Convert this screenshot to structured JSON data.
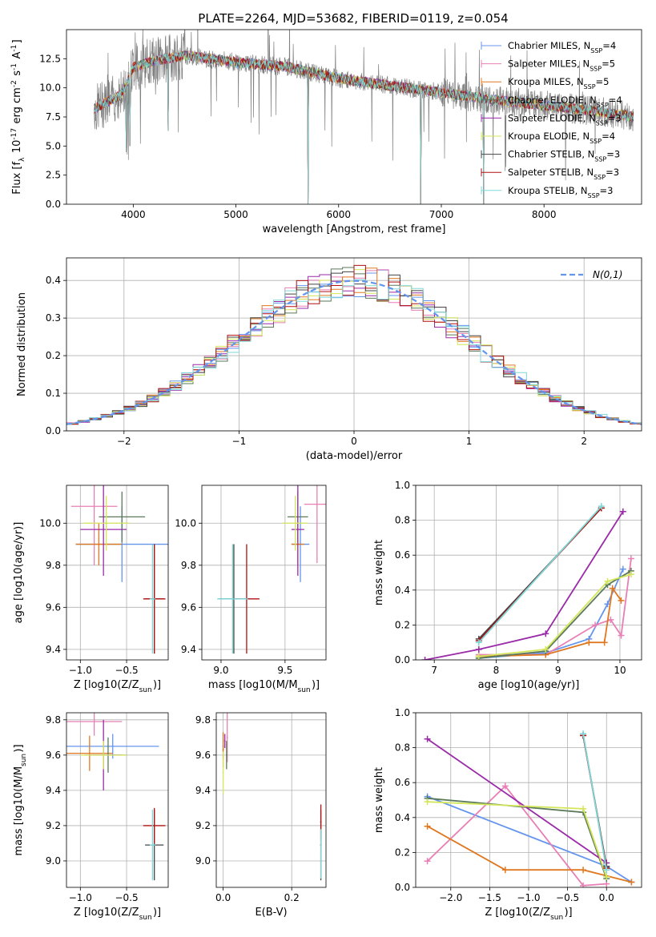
{
  "figure": {
    "title": "PLATE=2264, MJD=53682, FIBERID=0119, z=0.054"
  },
  "models": [
    {
      "label": "Chabrier MILES, N_SSP=4",
      "short": "Chabrier MILES",
      "n": "4",
      "color": "#6495ed"
    },
    {
      "label": "Salpeter MILES, N_SSP=5",
      "short": "Salpeter MILES",
      "n": "5",
      "color": "#e87fb5"
    },
    {
      "label": "Kroupa MILES, N_SSP=5",
      "short": "Kroupa MILES",
      "n": "5",
      "color": "#e07820"
    },
    {
      "label": "Chabrier ELODIE, N_SSP=4",
      "short": "Chabrier ELODIE",
      "n": "4",
      "color": "#5a7a5a"
    },
    {
      "label": "Salpeter ELODIE, N_SSP=3",
      "short": "Salpeter ELODIE",
      "n": "3",
      "color": "#9a2aa8"
    },
    {
      "label": "Kroupa ELODIE, N_SSP=4",
      "short": "Kroupa ELODIE",
      "n": "4",
      "color": "#d4e65a"
    },
    {
      "label": "Chabrier STELIB, N_SSP=3",
      "short": "Chabrier STELIB",
      "n": "3",
      "color": "#444444"
    },
    {
      "label": "Salpeter STELIB, N_SSP=3",
      "short": "Salpeter STELIB",
      "n": "3",
      "color": "#b01010"
    },
    {
      "label": "Kroupa STELIB, N_SSP=3",
      "short": "Kroupa STELIB",
      "n": "3",
      "color": "#7ed8d8"
    }
  ],
  "chart_data": [
    {
      "id": "spectrum",
      "type": "line",
      "xlabel": "wavelength [Angstrom, rest frame]",
      "ylabel": "Flux [f_λ 10^-17 erg cm^-2 s^-1 A^-1]",
      "xlim": [
        3350,
        8950
      ],
      "ylim": [
        0,
        15
      ],
      "xticks": [
        4000,
        5000,
        6000,
        7000,
        8000
      ],
      "yticks": [
        "0.0",
        "2.5",
        "5.0",
        "7.5",
        "10.0",
        "12.5"
      ],
      "data_color": "#808080",
      "model_color": "#7ed8d8",
      "continuum": [
        [
          3620,
          8.2
        ],
        [
          3900,
          9.5
        ],
        [
          4000,
          11.8
        ],
        [
          4200,
          12.3
        ],
        [
          4500,
          12.8
        ],
        [
          5000,
          12.2
        ],
        [
          5500,
          11.8
        ],
        [
          6000,
          10.8
        ],
        [
          6500,
          10.2
        ],
        [
          7000,
          9.6
        ],
        [
          7500,
          9.0
        ],
        [
          8000,
          8.5
        ],
        [
          8500,
          8.0
        ],
        [
          8870,
          7.5
        ]
      ],
      "dips": [
        [
          3933,
          4.5
        ],
        [
          3968,
          5.0
        ],
        [
          4340,
          6.3
        ],
        [
          5700,
          0.0
        ],
        [
          6800,
          0.0
        ],
        [
          7410,
          0.0
        ]
      ],
      "wavelength_range": [
        3620,
        8870
      ]
    },
    {
      "id": "residuals",
      "type": "histogram",
      "xlabel": "(data-model)/error",
      "ylabel": "Normed distribution",
      "xlim": [
        -2.5,
        2.5
      ],
      "ylim": [
        0,
        0.46
      ],
      "xticks": [
        -2,
        -1,
        0,
        1,
        2
      ],
      "yticks": [
        "0.0",
        "0.1",
        "0.2",
        "0.3",
        "0.4"
      ],
      "legend": "N(0,1)",
      "bin_width": 0.1,
      "grid": true
    },
    {
      "id": "age-vs-Z",
      "type": "errorbar",
      "xlabel": "Z [log10(Z/Z_sun)]",
      "ylabel": "age [log10(age/yr)]",
      "xlim": [
        -1.15,
        -0.05
      ],
      "ylim": [
        9.35,
        10.18
      ],
      "xticks": [
        -1.0,
        -0.5
      ],
      "yticks": [
        9.4,
        9.6,
        9.8,
        10.0
      ],
      "points": [
        {
          "model": 0,
          "x": -0.55,
          "y": 9.9,
          "xerr": 0.5,
          "yerr": 0.18
        },
        {
          "model": 1,
          "x": -0.85,
          "y": 10.08,
          "xerr": 0.25,
          "yerr": 0.28
        },
        {
          "model": 2,
          "x": -0.8,
          "y": 9.9,
          "xerr": 0.25,
          "yerr": 0.1
        },
        {
          "model": 3,
          "x": -0.55,
          "y": 10.03,
          "xerr": 0.25,
          "yerr": 0.12
        },
        {
          "model": 4,
          "x": -0.75,
          "y": 9.97,
          "xerr": 0.25,
          "yerr": 0.22
        },
        {
          "model": 5,
          "x": -0.72,
          "y": 10.0,
          "xerr": 0.25,
          "yerr": 0.13
        },
        {
          "model": 6,
          "x": -0.2,
          "y": 9.64,
          "xerr": 0.1,
          "yerr": 0.26
        },
        {
          "model": 7,
          "x": -0.2,
          "y": 9.64,
          "xerr": 0.12,
          "yerr": 0.26
        },
        {
          "model": 8,
          "x": -0.22,
          "y": 9.64,
          "xerr": 0.03,
          "yerr": 0.26
        }
      ]
    },
    {
      "id": "age-vs-mass",
      "type": "errorbar",
      "xlabel": "mass [log10(M/M_sun)]",
      "ylabel": "",
      "xlim": [
        8.85,
        9.82
      ],
      "ylim": [
        9.35,
        10.18
      ],
      "xticks": [
        9.0,
        9.5
      ],
      "yticks": [
        9.4,
        9.6,
        9.8,
        10.0
      ],
      "points": [
        {
          "model": 0,
          "x": 9.62,
          "y": 9.9,
          "xerr": 0.07,
          "yerr": 0.18
        },
        {
          "model": 1,
          "x": 9.75,
          "y": 10.09,
          "xerr": 0.1,
          "yerr": 0.28
        },
        {
          "model": 2,
          "x": 9.6,
          "y": 9.9,
          "xerr": 0.05,
          "yerr": 0.1
        },
        {
          "model": 3,
          "x": 9.6,
          "y": 10.03,
          "xerr": 0.08,
          "yerr": 0.12
        },
        {
          "model": 4,
          "x": 9.6,
          "y": 9.97,
          "xerr": 0.05,
          "yerr": 0.22
        },
        {
          "model": 5,
          "x": 9.58,
          "y": 10.0,
          "xerr": 0.1,
          "yerr": 0.13
        },
        {
          "model": 6,
          "x": 9.1,
          "y": 9.64,
          "xerr": 0.12,
          "yerr": 0.26
        },
        {
          "model": 7,
          "x": 9.2,
          "y": 9.64,
          "xerr": 0.1,
          "yerr": 0.26
        },
        {
          "model": 8,
          "x": 9.09,
          "y": 9.64,
          "xerr": 0.12,
          "yerr": 0.26
        }
      ]
    },
    {
      "id": "massweight-vs-age",
      "type": "line",
      "xlabel": "age [log10(age/yr)]",
      "ylabel": "mass weight",
      "xlim": [
        6.7,
        10.35
      ],
      "ylim": [
        0,
        1
      ],
      "xticks": [
        7,
        8,
        9,
        10
      ],
      "yticks": [
        "0.0",
        "0.2",
        "0.4",
        "0.6",
        "0.8",
        "1.0"
      ],
      "series": [
        {
          "model": 0,
          "points": [
            [
              7.72,
              0.01
            ],
            [
              8.8,
              0.04
            ],
            [
              9.5,
              0.12
            ],
            [
              9.8,
              0.32
            ],
            [
              10.05,
              0.52
            ]
          ]
        },
        {
          "model": 1,
          "points": [
            [
              7.72,
              0.03
            ],
            [
              8.8,
              0.03
            ],
            [
              9.6,
              0.2
            ],
            [
              9.85,
              0.23
            ],
            [
              10.02,
              0.14
            ],
            [
              10.18,
              0.58
            ]
          ]
        },
        {
          "model": 2,
          "points": [
            [
              7.72,
              0.02
            ],
            [
              8.8,
              0.03
            ],
            [
              9.5,
              0.1
            ],
            [
              9.75,
              0.1
            ],
            [
              9.88,
              0.41
            ],
            [
              10.02,
              0.34
            ]
          ]
        },
        {
          "model": 3,
          "points": [
            [
              7.72,
              0.01
            ],
            [
              8.8,
              0.05
            ],
            [
              9.8,
              0.43
            ],
            [
              10.18,
              0.51
            ]
          ]
        },
        {
          "model": 4,
          "points": [
            [
              6.85,
              0.0
            ],
            [
              7.72,
              0.06
            ],
            [
              8.8,
              0.15
            ],
            [
              10.05,
              0.85
            ]
          ]
        },
        {
          "model": 5,
          "points": [
            [
              7.72,
              0.02
            ],
            [
              8.8,
              0.06
            ],
            [
              9.8,
              0.45
            ],
            [
              10.18,
              0.49
            ]
          ]
        },
        {
          "model": 6,
          "points": [
            [
              7.72,
              0.12
            ],
            [
              9.7,
              0.87
            ]
          ]
        },
        {
          "model": 7,
          "points": [
            [
              7.72,
              0.11
            ],
            [
              9.7,
              0.87
            ]
          ]
        },
        {
          "model": 8,
          "points": [
            [
              7.72,
              0.1
            ],
            [
              9.7,
              0.88
            ]
          ]
        }
      ]
    },
    {
      "id": "mass-vs-Z",
      "type": "errorbar",
      "xlabel": "Z [log10(Z/Z_sun)]",
      "ylabel": "mass [log10(M/M_sun)]",
      "xlim": [
        -1.15,
        -0.05
      ],
      "ylim": [
        8.85,
        9.84
      ],
      "xticks": [
        -1.0,
        -0.5
      ],
      "yticks": [
        9.0,
        9.2,
        9.4,
        9.6,
        9.8
      ],
      "points": [
        {
          "model": 0,
          "x": -0.65,
          "y": 9.65,
          "xerr": 0.5,
          "yerr": 0.07
        },
        {
          "model": 1,
          "x": -0.85,
          "y": 9.79,
          "xerr": 0.3,
          "yerr": 0.08
        },
        {
          "model": 2,
          "x": -0.9,
          "y": 9.61,
          "xerr": 0.25,
          "yerr": 0.1
        },
        {
          "model": 3,
          "x": -0.7,
          "y": 9.6,
          "xerr": 0.2,
          "yerr": 0.1
        },
        {
          "model": 4,
          "x": -0.75,
          "y": 9.6,
          "xerr": 0.2,
          "yerr": 0.2
        },
        {
          "model": 5,
          "x": -0.75,
          "y": 9.6,
          "xerr": 0.25,
          "yerr": 0.08
        },
        {
          "model": 6,
          "x": -0.2,
          "y": 9.09,
          "xerr": 0.1,
          "yerr": 0.2
        },
        {
          "model": 7,
          "x": -0.2,
          "y": 9.2,
          "xerr": 0.12,
          "yerr": 0.1
        },
        {
          "model": 8,
          "x": -0.22,
          "y": 9.09,
          "xerr": 0.03,
          "yerr": 0.2
        }
      ]
    },
    {
      "id": "mass-vs-ebv",
      "type": "errorbar",
      "xlabel": "E(B-V)",
      "ylabel": "",
      "xlim": [
        -0.02,
        0.3
      ],
      "ylim": [
        8.85,
        9.84
      ],
      "xticks": [
        0.0,
        0.2
      ],
      "yticks": [
        9.0,
        9.2,
        9.4,
        9.6,
        9.8
      ],
      "points": [
        {
          "model": 0,
          "x": 0.0,
          "y": 9.65,
          "xerr": 0.002,
          "yerr": 0.07
        },
        {
          "model": 1,
          "x": 0.012,
          "y": 9.7,
          "xerr": 0.002,
          "yerr": 0.14
        },
        {
          "model": 2,
          "x": 0.0,
          "y": 9.63,
          "xerr": 0.002,
          "yerr": 0.1
        },
        {
          "model": 3,
          "x": 0.01,
          "y": 9.6,
          "xerr": 0.002,
          "yerr": 0.08
        },
        {
          "model": 4,
          "x": 0.005,
          "y": 9.68,
          "xerr": 0.002,
          "yerr": 0.04
        },
        {
          "model": 5,
          "x": 0.0,
          "y": 9.5,
          "xerr": 0.002,
          "yerr": 0.12
        },
        {
          "model": 6,
          "x": 0.285,
          "y": 9.09,
          "xerr": 0.002,
          "yerr": 0.2
        },
        {
          "model": 7,
          "x": 0.285,
          "y": 9.22,
          "xerr": 0.002,
          "yerr": 0.1
        },
        {
          "model": 8,
          "x": 0.285,
          "y": 9.04,
          "xerr": 0.002,
          "yerr": 0.14
        }
      ]
    },
    {
      "id": "massweight-vs-Z",
      "type": "line",
      "xlabel": "Z [log10(Z/Z_sun)]",
      "ylabel": "mass weight",
      "xlim": [
        -2.45,
        0.45
      ],
      "ylim": [
        0,
        1
      ],
      "xticks": [
        -2.0,
        -1.5,
        -1.0,
        -0.5,
        0.0
      ],
      "yticks": [
        "0.0",
        "0.2",
        "0.4",
        "0.6",
        "0.8",
        "1.0"
      ],
      "series": [
        {
          "model": 0,
          "points": [
            [
              -2.3,
              0.52
            ],
            [
              0.0,
              0.12
            ],
            [
              0.32,
              0.03
            ]
          ]
        },
        {
          "model": 1,
          "points": [
            [
              -2.3,
              0.15
            ],
            [
              -1.3,
              0.58
            ],
            [
              -0.3,
              0.01
            ],
            [
              0.0,
              0.02
            ]
          ]
        },
        {
          "model": 2,
          "points": [
            [
              -2.3,
              0.35
            ],
            [
              -1.3,
              0.1
            ],
            [
              -0.3,
              0.1
            ],
            [
              0.32,
              0.03
            ]
          ]
        },
        {
          "model": 3,
          "points": [
            [
              -2.3,
              0.51
            ],
            [
              -0.3,
              0.43
            ],
            [
              0.0,
              0.05
            ]
          ]
        },
        {
          "model": 4,
          "points": [
            [
              -2.3,
              0.85
            ],
            [
              0.0,
              0.14
            ]
          ]
        },
        {
          "model": 5,
          "points": [
            [
              -2.3,
              0.49
            ],
            [
              -0.3,
              0.45
            ],
            [
              0.0,
              0.06
            ]
          ]
        },
        {
          "model": 6,
          "points": [
            [
              -0.3,
              0.87
            ],
            [
              0.0,
              0.12
            ]
          ]
        },
        {
          "model": 7,
          "points": [
            [
              -0.3,
              0.87
            ],
            [
              0.0,
              0.11
            ]
          ]
        },
        {
          "model": 8,
          "points": [
            [
              -0.3,
              0.88
            ],
            [
              0.0,
              0.1
            ]
          ]
        }
      ]
    }
  ]
}
